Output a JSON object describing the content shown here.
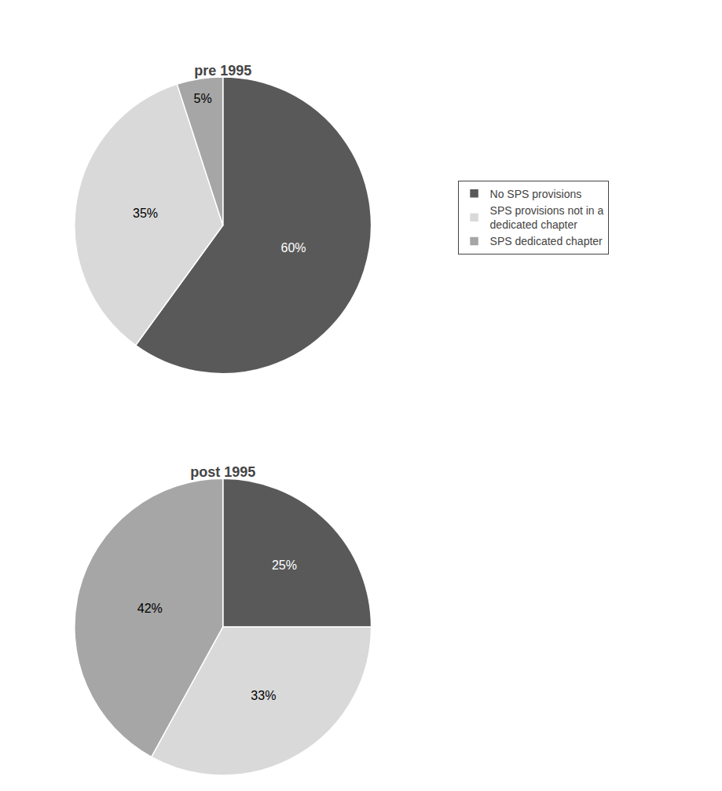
{
  "chart_data": [
    {
      "type": "pie",
      "title": "pre 1995",
      "categories": [
        "No SPS provisions",
        "SPS provisions not in a\ndedicated chapter",
        "SPS dedicated chapter"
      ],
      "values": [
        60,
        35,
        5
      ],
      "value_labels": [
        "60%",
        "35%",
        "5%"
      ],
      "colors": [
        "#595959",
        "#d9d9d9",
        "#a6a6a6"
      ],
      "data_labels": true,
      "legend": "right"
    },
    {
      "type": "pie",
      "title": "post 1995",
      "categories": [
        "No SPS provisions",
        "SPS provisions not in a\ndedicated chapter",
        "SPS dedicated chapter"
      ],
      "values": [
        25,
        33,
        42
      ],
      "value_labels": [
        "25%",
        "33%",
        "42%"
      ],
      "colors": [
        "#595959",
        "#d9d9d9",
        "#a6a6a6"
      ],
      "data_labels": true,
      "legend": "right"
    }
  ]
}
